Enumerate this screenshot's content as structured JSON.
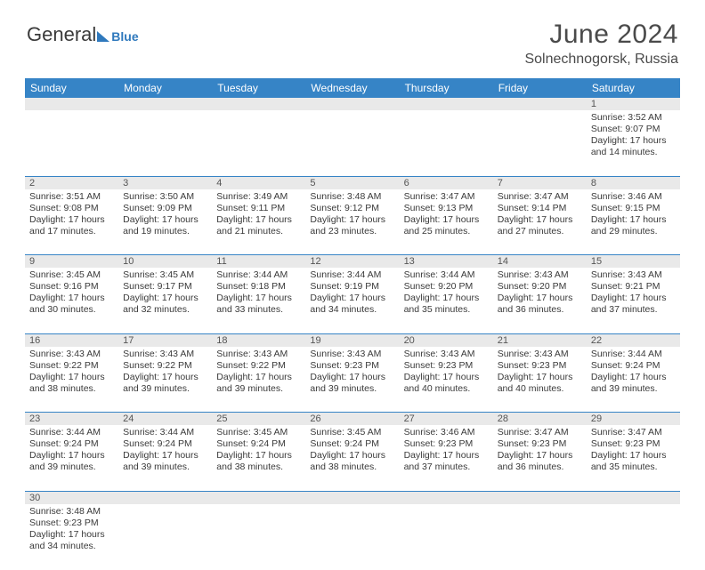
{
  "logo": {
    "text1": "General",
    "text2": "Blue"
  },
  "header": {
    "title": "June 2024",
    "location": "Solnechnogorsk, Russia"
  },
  "style": {
    "header_bg": "#3684c6",
    "header_fg": "#ffffff",
    "daynum_bg": "#e9e9e9",
    "border_color": "#3684c6",
    "page_bg": "#ffffff",
    "text_color": "#3a3a3a",
    "title_fontsize": 30,
    "subtitle_fontsize": 16,
    "body_fontsize": 10.5,
    "col_header_fontsize": 12
  },
  "weekdays": [
    "Sunday",
    "Monday",
    "Tuesday",
    "Wednesday",
    "Thursday",
    "Friday",
    "Saturday"
  ],
  "weeks": [
    [
      null,
      null,
      null,
      null,
      null,
      null,
      {
        "d": "1",
        "sr": "Sunrise: 3:52 AM",
        "ss": "Sunset: 9:07 PM",
        "dl": "Daylight: 17 hours and 14 minutes."
      }
    ],
    [
      {
        "d": "2",
        "sr": "Sunrise: 3:51 AM",
        "ss": "Sunset: 9:08 PM",
        "dl": "Daylight: 17 hours and 17 minutes."
      },
      {
        "d": "3",
        "sr": "Sunrise: 3:50 AM",
        "ss": "Sunset: 9:09 PM",
        "dl": "Daylight: 17 hours and 19 minutes."
      },
      {
        "d": "4",
        "sr": "Sunrise: 3:49 AM",
        "ss": "Sunset: 9:11 PM",
        "dl": "Daylight: 17 hours and 21 minutes."
      },
      {
        "d": "5",
        "sr": "Sunrise: 3:48 AM",
        "ss": "Sunset: 9:12 PM",
        "dl": "Daylight: 17 hours and 23 minutes."
      },
      {
        "d": "6",
        "sr": "Sunrise: 3:47 AM",
        "ss": "Sunset: 9:13 PM",
        "dl": "Daylight: 17 hours and 25 minutes."
      },
      {
        "d": "7",
        "sr": "Sunrise: 3:47 AM",
        "ss": "Sunset: 9:14 PM",
        "dl": "Daylight: 17 hours and 27 minutes."
      },
      {
        "d": "8",
        "sr": "Sunrise: 3:46 AM",
        "ss": "Sunset: 9:15 PM",
        "dl": "Daylight: 17 hours and 29 minutes."
      }
    ],
    [
      {
        "d": "9",
        "sr": "Sunrise: 3:45 AM",
        "ss": "Sunset: 9:16 PM",
        "dl": "Daylight: 17 hours and 30 minutes."
      },
      {
        "d": "10",
        "sr": "Sunrise: 3:45 AM",
        "ss": "Sunset: 9:17 PM",
        "dl": "Daylight: 17 hours and 32 minutes."
      },
      {
        "d": "11",
        "sr": "Sunrise: 3:44 AM",
        "ss": "Sunset: 9:18 PM",
        "dl": "Daylight: 17 hours and 33 minutes."
      },
      {
        "d": "12",
        "sr": "Sunrise: 3:44 AM",
        "ss": "Sunset: 9:19 PM",
        "dl": "Daylight: 17 hours and 34 minutes."
      },
      {
        "d": "13",
        "sr": "Sunrise: 3:44 AM",
        "ss": "Sunset: 9:20 PM",
        "dl": "Daylight: 17 hours and 35 minutes."
      },
      {
        "d": "14",
        "sr": "Sunrise: 3:43 AM",
        "ss": "Sunset: 9:20 PM",
        "dl": "Daylight: 17 hours and 36 minutes."
      },
      {
        "d": "15",
        "sr": "Sunrise: 3:43 AM",
        "ss": "Sunset: 9:21 PM",
        "dl": "Daylight: 17 hours and 37 minutes."
      }
    ],
    [
      {
        "d": "16",
        "sr": "Sunrise: 3:43 AM",
        "ss": "Sunset: 9:22 PM",
        "dl": "Daylight: 17 hours and 38 minutes."
      },
      {
        "d": "17",
        "sr": "Sunrise: 3:43 AM",
        "ss": "Sunset: 9:22 PM",
        "dl": "Daylight: 17 hours and 39 minutes."
      },
      {
        "d": "18",
        "sr": "Sunrise: 3:43 AM",
        "ss": "Sunset: 9:22 PM",
        "dl": "Daylight: 17 hours and 39 minutes."
      },
      {
        "d": "19",
        "sr": "Sunrise: 3:43 AM",
        "ss": "Sunset: 9:23 PM",
        "dl": "Daylight: 17 hours and 39 minutes."
      },
      {
        "d": "20",
        "sr": "Sunrise: 3:43 AM",
        "ss": "Sunset: 9:23 PM",
        "dl": "Daylight: 17 hours and 40 minutes."
      },
      {
        "d": "21",
        "sr": "Sunrise: 3:43 AM",
        "ss": "Sunset: 9:23 PM",
        "dl": "Daylight: 17 hours and 40 minutes."
      },
      {
        "d": "22",
        "sr": "Sunrise: 3:44 AM",
        "ss": "Sunset: 9:24 PM",
        "dl": "Daylight: 17 hours and 39 minutes."
      }
    ],
    [
      {
        "d": "23",
        "sr": "Sunrise: 3:44 AM",
        "ss": "Sunset: 9:24 PM",
        "dl": "Daylight: 17 hours and 39 minutes."
      },
      {
        "d": "24",
        "sr": "Sunrise: 3:44 AM",
        "ss": "Sunset: 9:24 PM",
        "dl": "Daylight: 17 hours and 39 minutes."
      },
      {
        "d": "25",
        "sr": "Sunrise: 3:45 AM",
        "ss": "Sunset: 9:24 PM",
        "dl": "Daylight: 17 hours and 38 minutes."
      },
      {
        "d": "26",
        "sr": "Sunrise: 3:45 AM",
        "ss": "Sunset: 9:24 PM",
        "dl": "Daylight: 17 hours and 38 minutes."
      },
      {
        "d": "27",
        "sr": "Sunrise: 3:46 AM",
        "ss": "Sunset: 9:23 PM",
        "dl": "Daylight: 17 hours and 37 minutes."
      },
      {
        "d": "28",
        "sr": "Sunrise: 3:47 AM",
        "ss": "Sunset: 9:23 PM",
        "dl": "Daylight: 17 hours and 36 minutes."
      },
      {
        "d": "29",
        "sr": "Sunrise: 3:47 AM",
        "ss": "Sunset: 9:23 PM",
        "dl": "Daylight: 17 hours and 35 minutes."
      }
    ],
    [
      {
        "d": "30",
        "sr": "Sunrise: 3:48 AM",
        "ss": "Sunset: 9:23 PM",
        "dl": "Daylight: 17 hours and 34 minutes."
      },
      null,
      null,
      null,
      null,
      null,
      null
    ]
  ]
}
